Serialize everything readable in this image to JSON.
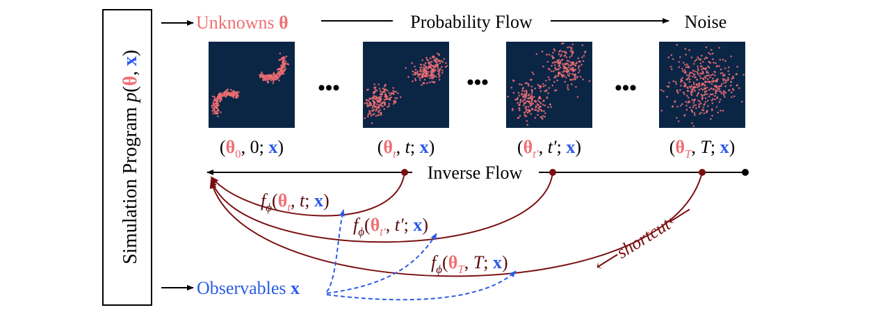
{
  "sidebar": {
    "label": "Simulation Program",
    "formula_p": "p",
    "formula_open": "(",
    "formula_theta": "θ",
    "formula_comma": ", ",
    "formula_x": "x",
    "formula_close": ")"
  },
  "top_flow": {
    "unknowns_label": "Unknowns",
    "theta": "θ",
    "flow_label": "Probability Flow",
    "noise_label": "Noise"
  },
  "ellipsis": "•••",
  "states": [
    {
      "theta": "θ",
      "sub": "0",
      "time": "0",
      "x": "x",
      "rotation_deg": 0,
      "spread": 0.0
    },
    {
      "theta": "θ",
      "sub": "t",
      "time": "t",
      "x": "x",
      "rotation_deg": 5,
      "spread": 0.35
    },
    {
      "theta": "θ",
      "sub": "t′",
      "time": "t′",
      "x": "x",
      "rotation_deg": 15,
      "spread": 0.7
    },
    {
      "theta": "θ",
      "sub": "T",
      "time": "T",
      "x": "x",
      "rotation_deg": 0,
      "spread": 1.0
    }
  ],
  "inverse_flow": {
    "label": "Inverse Flow"
  },
  "f_labels": [
    {
      "f": "f",
      "phi": "ϕ",
      "theta": "θ",
      "sub": "t",
      "time": "t",
      "x": "x"
    },
    {
      "f": "f",
      "phi": "ϕ",
      "theta": "θ",
      "sub": "t′",
      "time": "t′",
      "x": "x"
    },
    {
      "f": "f",
      "phi": "ϕ",
      "theta": "θ",
      "sub": "T",
      "time": "T",
      "x": "x"
    }
  ],
  "shortcut_label": "shortcut",
  "observables": {
    "label": "Observables",
    "x": "x"
  },
  "colors": {
    "theta": "#f06e72",
    "x": "#2a5ae8",
    "curve": "#7a0f12",
    "scatter_bg": "#0b2545",
    "scatter_dot": "#f06e72",
    "dashed": "#2a5ae8",
    "line": "#000000"
  }
}
